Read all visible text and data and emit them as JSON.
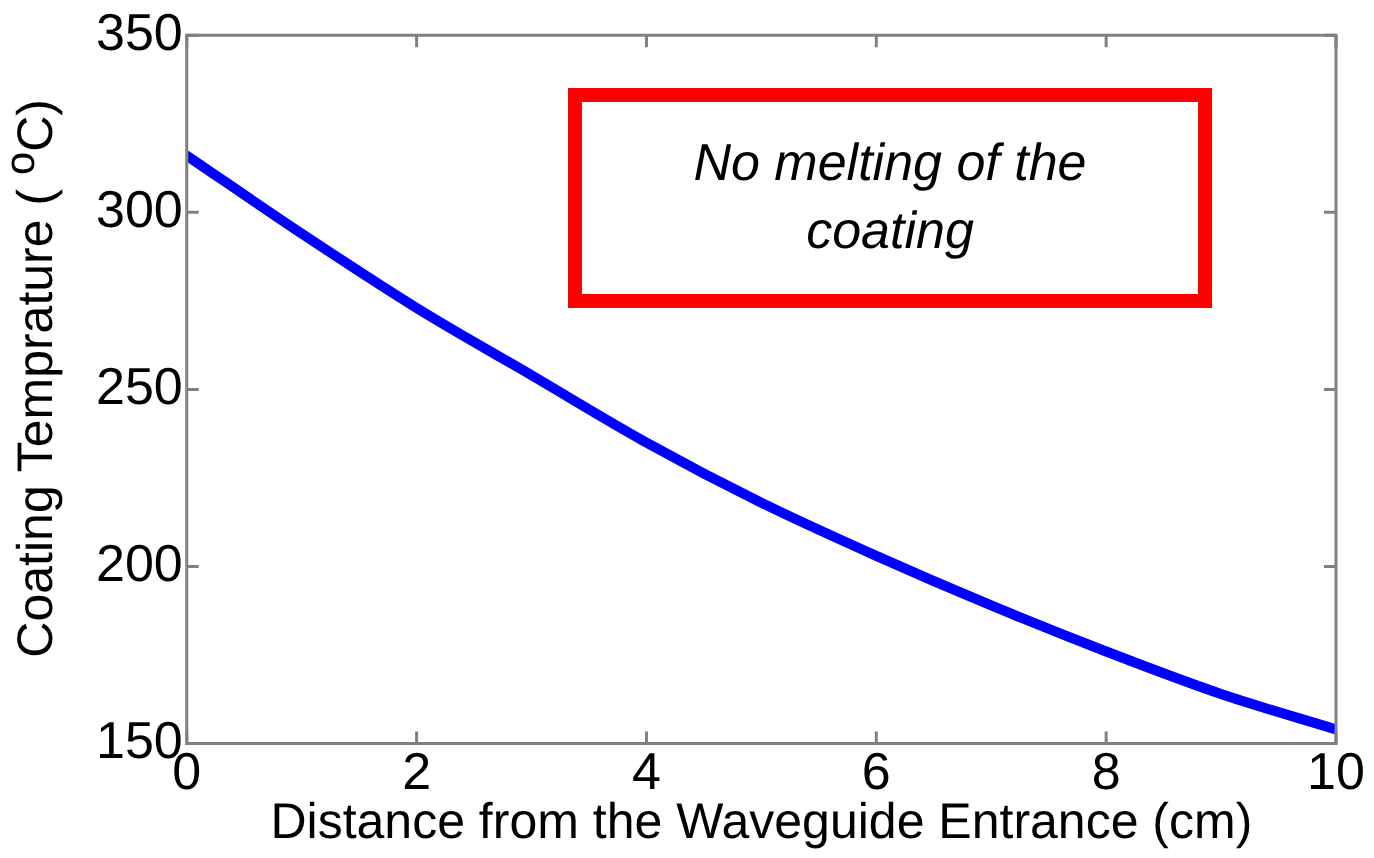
{
  "chart_data": {
    "type": "line",
    "xlabel": "Distance from the Waveguide Entrance (cm)",
    "ylabel": "Coating Temprature ( $^{o}$C)",
    "annotations": [
      "No melting of the coating"
    ],
    "x": [
      0,
      1,
      2,
      3,
      4,
      5,
      6,
      7,
      8,
      9,
      10
    ],
    "series": [
      {
        "color": "#0000ff",
        "values": [
          316,
          294,
          273,
          254,
          235,
          218,
          203,
          189,
          176,
          164,
          154
        ]
      }
    ],
    "xlim": [
      0,
      10
    ],
    "xticks": [
      0,
      2,
      4,
      6,
      8,
      10
    ],
    "ylim": [
      150,
      350
    ],
    "yticks": [
      150,
      200,
      250,
      300,
      350
    ],
    "grid": false,
    "legend": false,
    "marker": "none",
    "line_style": "solid"
  }
}
